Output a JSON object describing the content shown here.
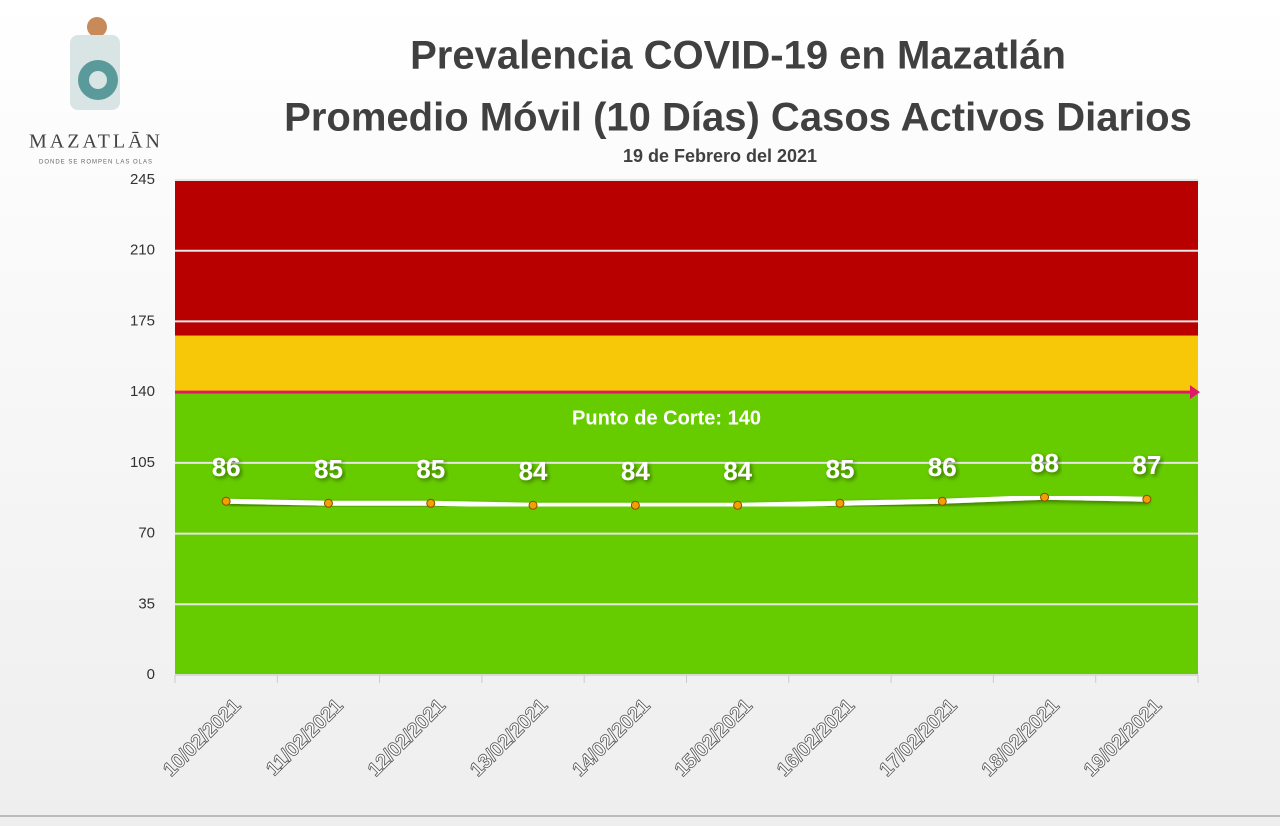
{
  "logo": {
    "name": "MAZATLĀN",
    "tagline": "DONDE SE ROMPEN LAS OLAS"
  },
  "chart_data": {
    "type": "line",
    "title": "Prevalencia COVID-19 en Mazatlán",
    "subtitle": "Promedio Móvil (10 Días) Casos Activos Diarios",
    "caption": "19 de Febrero del 2021",
    "categories": [
      "10/02/2021",
      "11/02/2021",
      "12/02/2021",
      "13/02/2021",
      "14/02/2021",
      "15/02/2021",
      "16/02/2021",
      "17/02/2021",
      "18/02/2021",
      "19/02/2021"
    ],
    "values": [
      86,
      85,
      85,
      84,
      84,
      84,
      85,
      86,
      88,
      87
    ],
    "color": "#ffffff",
    "marker_color": "#f0a000",
    "ylim": [
      0,
      245
    ],
    "yticks": [
      0,
      35,
      70,
      105,
      140,
      175,
      210,
      245
    ],
    "grid": true,
    "bands": [
      {
        "from": 0,
        "to": 140,
        "color": "#66cc00"
      },
      {
        "from": 140,
        "to": 168,
        "color": "#f7c808"
      },
      {
        "from": 168,
        "to": 245,
        "color": "#b80000"
      }
    ],
    "threshold": {
      "value": 140,
      "color": "#e0186c",
      "label": "Punto de Corte: 140"
    }
  }
}
